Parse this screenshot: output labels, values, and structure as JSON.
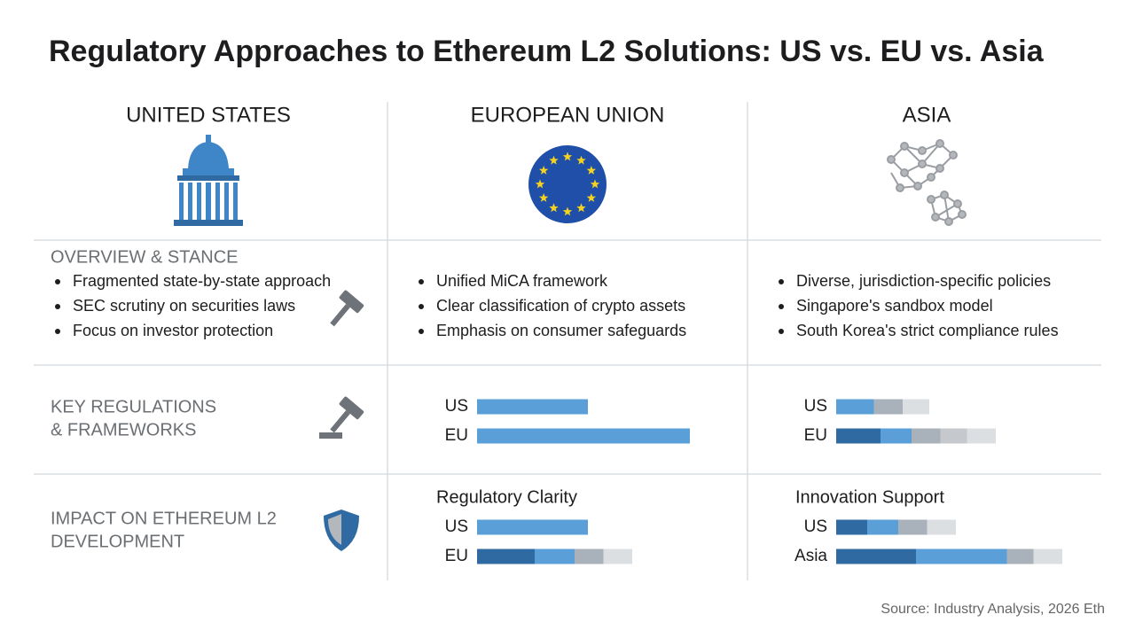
{
  "title": "Regulatory Approaches to Ethereum L2 Solutions: US vs. EU vs. Asia",
  "columns": [
    "UNITED STATES",
    "EUROPEAN UNION",
    "ASIA"
  ],
  "rows": [
    {
      "label": [
        "OVERVIEW & STANCE"
      ],
      "cells": [
        [
          "Fragmented state-by-state approach",
          "SEC scrutiny on securities laws",
          "Focus on investor protection"
        ],
        [
          "Unified MiCA framework",
          "Clear classification of crypto assets",
          "Emphasis on consumer safeguards"
        ],
        [
          "Diverse, jurisdiction-specific policies",
          "Singapore's sandbox model",
          "South Korea's strict compliance rules"
        ]
      ]
    },
    {
      "label": [
        "KEY REGULATIONS",
        "& FRAMEWORKS"
      ]
    },
    {
      "label": [
        "IMPACT ON ETHEREUM L2",
        "DEVELOPMENT"
      ]
    }
  ],
  "bar_scale": [
    0,
    100
  ],
  "bar_groups": [
    {
      "bars": [
        {
          "label": "US",
          "segments": [
            {
              "value": 50,
              "color": "#5a9fd8"
            }
          ]
        },
        {
          "label": "EU",
          "segments": [
            {
              "value": 96,
              "color": "#5a9fd8"
            }
          ]
        }
      ]
    },
    {
      "bars": [
        {
          "label": "US",
          "segments": [
            {
              "value": 17,
              "color": "#5a9fd8"
            },
            {
              "value": 13,
              "color": "#a9b2bb"
            },
            {
              "value": 12,
              "color": "#dcdfe2"
            }
          ]
        },
        {
          "label": "EU",
          "segments": [
            {
              "value": 20,
              "color": "#2f6aa3"
            },
            {
              "value": 14,
              "color": "#5a9fd8"
            },
            {
              "value": 13,
              "color": "#a9b2bb"
            },
            {
              "value": 12,
              "color": "#c5c9ce"
            },
            {
              "value": 13,
              "color": "#dcdfe2"
            }
          ]
        }
      ]
    },
    {
      "title": "Regulatory Clarity",
      "bars": [
        {
          "label": "US",
          "segments": [
            {
              "value": 50,
              "color": "#5a9fd8"
            }
          ]
        },
        {
          "label": "EU",
          "segments": [
            {
              "value": 26,
              "color": "#2f6aa3"
            },
            {
              "value": 18,
              "color": "#5a9fd8"
            },
            {
              "value": 13,
              "color": "#a9b2bb"
            },
            {
              "value": 13,
              "color": "#dcdfe2"
            }
          ]
        }
      ]
    },
    {
      "title": "Innovation Support",
      "bars": [
        {
          "label": "US",
          "segments": [
            {
              "value": 14,
              "color": "#2f6aa3"
            },
            {
              "value": 14,
              "color": "#5a9fd8"
            },
            {
              "value": 13,
              "color": "#a9b2bb"
            },
            {
              "value": 13,
              "color": "#dcdfe2"
            }
          ]
        },
        {
          "label": "Asia",
          "segments": [
            {
              "value": 36,
              "color": "#2f6aa3"
            },
            {
              "value": 41,
              "color": "#5a9fd8"
            },
            {
              "value": 12,
              "color": "#a9b2bb"
            },
            {
              "value": 13,
              "color": "#dcdfe2"
            }
          ]
        }
      ]
    }
  ],
  "source": "Source: Industry Analysis, 2026 Eth"
}
